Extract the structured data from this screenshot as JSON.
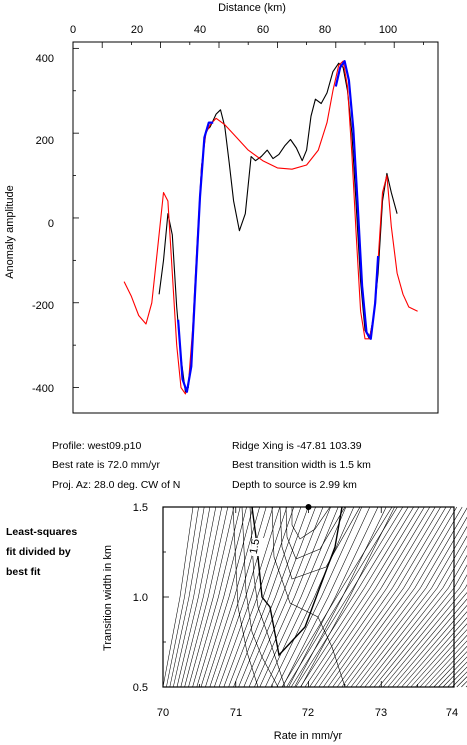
{
  "top_chart": {
    "xlabel": "Distance (km)",
    "ylabel": "Anomaly amplitude",
    "x_tick_labels": [
      "0",
      "20",
      "40",
      "60",
      "80",
      "100"
    ],
    "y_tick_labels": [
      "400",
      "200",
      "0",
      "-200",
      "-400"
    ]
  },
  "info": {
    "profile": "Profile: west09.p10",
    "best_rate": "Best rate is 72.0 mm/yr",
    "proj_az": "Proj. Az: 28.0 deg. CW of N",
    "ridge_xing": "Ridge Xing is -47.81 103.39",
    "best_width": "Best transition width is 1.5 km",
    "depth": "Depth to source is   2.99 km"
  },
  "side_note": [
    "Least-squares",
    "fit divided by",
    "best fit"
  ],
  "bottom_chart": {
    "xlabel": "Rate in mm/yr",
    "ylabel": "Transition width in km",
    "x_tick_labels": [
      "70",
      "71",
      "72",
      "73",
      "74"
    ],
    "y_tick_labels": [
      "1.5",
      "1.0",
      "0.5"
    ],
    "contour_label": "1.5"
  },
  "colors": {
    "observed": "#000000",
    "model": "#ff0000",
    "fit_window": "#0000ff"
  },
  "chart_data": [
    {
      "type": "line",
      "xlabel": "Distance (km)",
      "ylabel": "Anomaly amplitude",
      "xlim": [
        -10,
        115
      ],
      "ylim": [
        -460,
        415
      ],
      "x_ticks": [
        0,
        20,
        40,
        60,
        80,
        100
      ],
      "y_ticks": [
        400,
        200,
        0,
        -200,
        -400
      ],
      "series": [
        {
          "color": "#000000",
          "x": [
            19.5,
            21,
            22.5,
            24,
            25.5,
            27,
            28.5,
            29.5,
            31,
            32.5,
            34,
            35.5,
            37,
            39,
            40.5,
            42,
            43.5,
            45,
            47,
            49,
            51,
            52.5,
            54.5,
            56.5,
            58.5,
            60.5,
            62.5,
            64.5,
            66.5,
            68.5,
            70,
            71.5,
            73,
            75,
            77,
            79,
            81,
            82.5,
            84,
            85.5,
            87,
            88.5,
            90,
            91.5,
            93,
            94.5,
            96,
            97.5,
            99,
            101
          ],
          "y": [
            -180,
            -100,
            10,
            -40,
            -210,
            -330,
            -410,
            -400,
            -280,
            -80,
            120,
            205,
            215,
            245,
            255,
            215,
            130,
            40,
            -30,
            10,
            145,
            135,
            145,
            160,
            140,
            150,
            170,
            185,
            165,
            135,
            160,
            240,
            280,
            270,
            295,
            345,
            365,
            355,
            300,
            200,
            30,
            -150,
            -265,
            -285,
            -230,
            -130,
            40,
            105,
            60,
            10
          ]
        },
        {
          "color": "#ff0000",
          "x": [
            7.5,
            10,
            12.5,
            15,
            17,
            19,
            21,
            22.5,
            24,
            25.5,
            27,
            28.5,
            29.5,
            31,
            32.5,
            34,
            35.5,
            37,
            39,
            42,
            46,
            50,
            55,
            60,
            65,
            70,
            74,
            77,
            79,
            81,
            82.5,
            84,
            85.5,
            87,
            88.5,
            90,
            91.5,
            93,
            94.5,
            96,
            97.5,
            99,
            101,
            103,
            105,
            108
          ],
          "y": [
            -150,
            -185,
            -230,
            -250,
            -200,
            -70,
            60,
            40,
            -130,
            -300,
            -400,
            -415,
            -395,
            -260,
            -60,
            120,
            200,
            220,
            235,
            220,
            190,
            160,
            135,
            118,
            115,
            125,
            160,
            225,
            300,
            360,
            370,
            310,
            150,
            -40,
            -220,
            -285,
            -285,
            -230,
            -100,
            60,
            100,
            -20,
            -130,
            -180,
            -210,
            -220
          ]
        },
        {
          "color": "#0000ff",
          "x": [
            26,
            27.5,
            29,
            30.5,
            32,
            33.5,
            35,
            36.5,
            38,
            80,
            81.5,
            83,
            84.5,
            86,
            87.5,
            89,
            90.5,
            92,
            93.5,
            94.5
          ],
          "y": [
            -240,
            -380,
            -410,
            -350,
            -150,
            50,
            190,
            225,
            225,
            310,
            355,
            370,
            325,
            210,
            30,
            -160,
            -270,
            -285,
            -200,
            -90
          ]
        }
      ]
    },
    {
      "type": "heatmap",
      "xlabel": "Rate in mm/yr",
      "ylabel": "Transition width in km",
      "xlim": [
        70,
        74
      ],
      "ylim": [
        0.5,
        1.5
      ],
      "x_ticks": [
        70,
        71,
        72,
        73,
        74
      ],
      "y_ticks": [
        1.5,
        1.0,
        0.5
      ],
      "best_fit": {
        "rate": 72.0,
        "width": 1.5
      },
      "contour_labels": [
        "1.5"
      ]
    }
  ]
}
